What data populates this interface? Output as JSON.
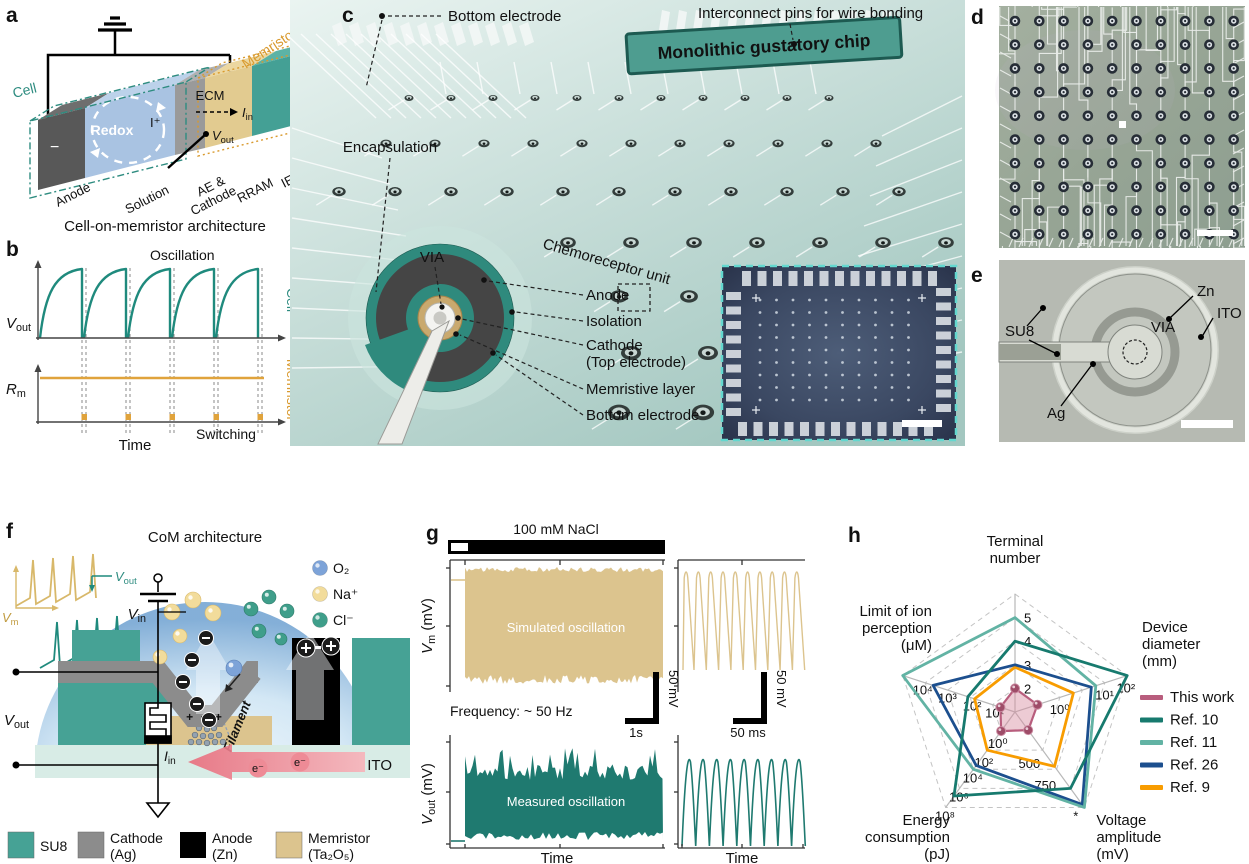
{
  "colors": {
    "teal": "#2e8c80",
    "teal_block": "#46a295",
    "teal_light": "#62b3a4",
    "teal_dark": "#177a6e",
    "tan": "#dcc48e",
    "orange_b": "#e0a33c",
    "blue_ref": "#1c4f8e",
    "orange_ref": "#f89c00",
    "pink": "#b85d7d"
  },
  "panel_a": {
    "label": "a",
    "cell": "Cell",
    "memristor": "Memristor",
    "redox": "Redox",
    "ion": "I⁺",
    "minus": "−",
    "ecm": "ECM",
    "iin": [
      [
        "i",
        "I"
      ],
      [
        "sub",
        "in"
      ]
    ],
    "vout": [
      [
        "i",
        "V"
      ],
      [
        "sub",
        "out"
      ]
    ],
    "anode": "Anode",
    "solution": "Solution",
    "ae_line1": "AE &",
    "ae_line2": "Cathode",
    "rram": "RRAM",
    "ie": "IE",
    "caption": "Cell-on-memristor architecture"
  },
  "panel_b": {
    "label": "b",
    "oscillation": "Oscillation",
    "switching": "Switching",
    "time": "Time",
    "cell": "Cell",
    "memristor": "Memristor",
    "vout": [
      [
        "i",
        "V"
      ],
      [
        "sub",
        "out"
      ]
    ],
    "rm": [
      [
        "i",
        "R"
      ],
      [
        "sub",
        "m"
      ]
    ]
  },
  "panel_c": {
    "label": "c",
    "bottom_electrode": "Bottom electrode",
    "interconnect": "Interconnect pins for wire bonding",
    "banner": "Monolithic gustatory chip",
    "encapsulation": "Encapsulation",
    "via": "VIA",
    "chemoreceptor": "Chemoreceptor unit",
    "callout_anode": "Anode",
    "callout_isolation": "Isolation",
    "callout_cathode": "Cathode",
    "callout_cathode2": "(Top electrode)",
    "callout_memristive": "Memristive layer",
    "callout_bottom": "Bottom electrode"
  },
  "panel_d": {
    "label": "d"
  },
  "panel_e": {
    "label": "e",
    "zn": "Zn",
    "ito": "ITO",
    "su8": "SU8",
    "via": "VIA",
    "ag": "Ag"
  },
  "panel_f": {
    "label": "f",
    "title": "CoM architecture",
    "vm": [
      [
        "i",
        "V"
      ],
      [
        "sub",
        "m"
      ]
    ],
    "vout": [
      [
        "i",
        "V"
      ],
      [
        "sub",
        "out"
      ]
    ],
    "vin": [
      [
        "i",
        "V"
      ],
      [
        "sub",
        "in"
      ]
    ],
    "iin": [
      [
        "i",
        "I"
      ],
      [
        "sub",
        "in"
      ]
    ],
    "filament": "Filament",
    "plus_charges": "+ + +",
    "ito": "ITO",
    "electron1": "e⁻",
    "electron2": "e⁻",
    "molecules": [
      {
        "name": "O₂",
        "color": "#7da3d8"
      },
      {
        "name": "Na⁺",
        "color": "#f2dc9b"
      },
      {
        "name": "Cl⁻",
        "color": "#3f9e8a"
      }
    ],
    "legend": [
      {
        "swatch": "#46a295",
        "line1": "SU8",
        "line2": ""
      },
      {
        "swatch": "#8c8c8c",
        "line1": "Cathode",
        "line2": "(Ag)"
      },
      {
        "swatch": "#000000",
        "line1": "Anode",
        "line2": "(Zn)"
      },
      {
        "swatch": "#dcc48e",
        "line1": "Memristor",
        "line2": "(Ta₂O₅)"
      }
    ]
  },
  "panel_g": {
    "label": "g",
    "stimulus": "100 mM NaCl",
    "sim": "Simulated oscillation",
    "meas": "Measured oscillation",
    "freq": "Frequency: ~ 50 Hz",
    "time1": "Time",
    "time2": "Time",
    "scale_v1": "50 mV",
    "scale_v2": "50 mV",
    "scale_t1": "1s",
    "scale_t2": "50 ms",
    "vm_axis": [
      [
        "i",
        "V"
      ],
      [
        "sub",
        "m"
      ],
      [
        "n",
        " (mV)"
      ]
    ],
    "vout_axis": [
      [
        "i",
        "V"
      ],
      [
        "sub",
        "out"
      ],
      [
        "n",
        " (mV)"
      ]
    ]
  },
  "panel_h": {
    "label": "h"
  },
  "chart_data": {
    "type": "radar",
    "rings": 5,
    "axes": [
      {
        "label": [
          "Terminal",
          "number"
        ],
        "ticks": [
          {
            "t": "2",
            "r": 0.2
          },
          {
            "t": "3",
            "r": 0.4
          },
          {
            "t": "4",
            "r": 0.6
          },
          {
            "t": "5",
            "r": 0.8
          }
        ]
      },
      {
        "label": [
          "Device",
          "diameter",
          "(mm)"
        ],
        "ticks": [
          {
            "t": "10⁰",
            "r": 0.38
          },
          {
            "t": "10¹",
            "r": 0.78
          },
          {
            "t": "10²",
            "r": 0.97
          }
        ]
      },
      {
        "label": [
          "Voltage",
          "amplitude",
          "(mV)"
        ],
        "ticks": [
          {
            "t": "500",
            "r": 0.45
          },
          {
            "t": "750",
            "r": 0.68
          },
          {
            "t": "*",
            "r": 1.0
          }
        ]
      },
      {
        "label": [
          "Energy",
          "consumption",
          "(pJ)"
        ],
        "ticks": [
          {
            "t": "10⁰",
            "r": 0.22
          },
          {
            "t": "10²",
            "r": 0.42
          },
          {
            "t": "10⁴",
            "r": 0.58
          },
          {
            "t": "10⁶",
            "r": 0.78
          },
          {
            "t": "10⁸",
            "r": 0.98
          }
        ]
      },
      {
        "label": [
          "Limit of ion",
          "perception",
          "(μM)"
        ],
        "ticks": [
          {
            "t": "10¹",
            "r": 0.2
          },
          {
            "t": "10²",
            "r": 0.4
          },
          {
            "t": "10³",
            "r": 0.62
          },
          {
            "t": "10⁴",
            "r": 0.84
          }
        ]
      }
    ],
    "series": [
      {
        "name": "This work",
        "color": "#b85d7d",
        "fill": "rgba(216,140,160,0.45)",
        "markers": true,
        "values": [
          0.2,
          0.2,
          0.19,
          0.2,
          0.13
        ]
      },
      {
        "name": "Ref. 10",
        "color": "#177a6e",
        "values": [
          0.6,
          1.0,
          0.8,
          0.88,
          0.42
        ]
      },
      {
        "name": "Ref. 11",
        "color": "#62b3a4",
        "values": [
          0.8,
          0.72,
          1.0,
          0.6,
          1.0
        ]
      },
      {
        "name": "Ref. 26",
        "color": "#1c4f8e",
        "values": [
          0.4,
          0.68,
          0.97,
          0.56,
          0.73
        ]
      },
      {
        "name": "Ref. 9",
        "color": "#f89c00",
        "values": [
          0.38,
          0.52,
          0.57,
          0.4,
          0.36
        ]
      }
    ],
    "legend_position": "right"
  }
}
